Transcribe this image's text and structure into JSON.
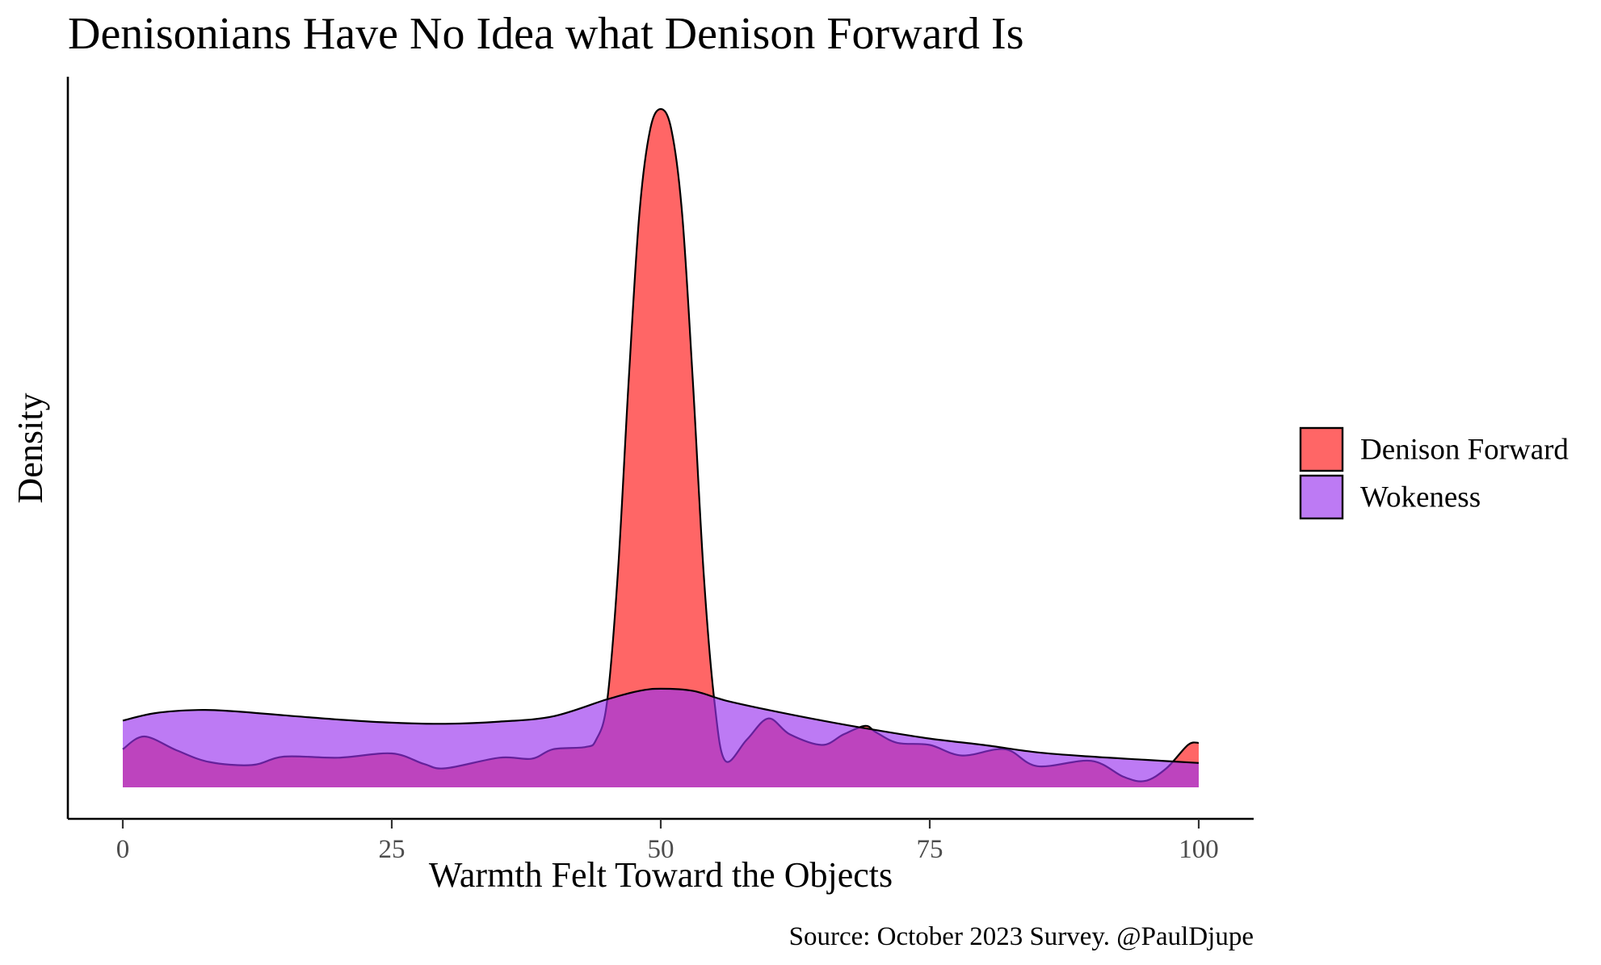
{
  "chart_data": {
    "type": "area",
    "title": "Denisonians Have No Idea what Denison Forward Is",
    "xlabel": "Warmth Felt Toward the Objects",
    "ylabel": "Density",
    "caption": "Source: October 2023 Survey. @PaulDjupe",
    "xlim": [
      -5,
      105
    ],
    "ylim": [
      0,
      0.064
    ],
    "x_ticks": [
      0,
      25,
      50,
      75,
      100
    ],
    "x_tick_labels": [
      "0",
      "25",
      "50",
      "75",
      "100"
    ],
    "y_axis_tick_labels_shown": false,
    "grid": false,
    "legend_position": "right",
    "series": [
      {
        "name": "Denison Forward",
        "color": "#ff3333",
        "opacity": 0.75,
        "points": [
          [
            0,
            0.0036
          ],
          [
            2,
            0.0048
          ],
          [
            5,
            0.0035
          ],
          [
            8,
            0.0024
          ],
          [
            12,
            0.0021
          ],
          [
            15,
            0.0029
          ],
          [
            20,
            0.0028
          ],
          [
            25,
            0.0032
          ],
          [
            28,
            0.0022
          ],
          [
            30,
            0.0018
          ],
          [
            35,
            0.0028
          ],
          [
            38,
            0.0027
          ],
          [
            40,
            0.0036
          ],
          [
            43,
            0.0038
          ],
          [
            44,
            0.0045
          ],
          [
            45,
            0.008
          ],
          [
            46,
            0.02
          ],
          [
            47,
            0.038
          ],
          [
            48,
            0.054
          ],
          [
            49,
            0.062
          ],
          [
            50,
            0.064
          ],
          [
            51,
            0.062
          ],
          [
            52,
            0.054
          ],
          [
            53,
            0.038
          ],
          [
            54,
            0.02
          ],
          [
            55,
            0.008
          ],
          [
            56,
            0.0025
          ],
          [
            58,
            0.0045
          ],
          [
            60,
            0.0065
          ],
          [
            62,
            0.005
          ],
          [
            65,
            0.004
          ],
          [
            67,
            0.005
          ],
          [
            69,
            0.0058
          ],
          [
            70,
            0.0052
          ],
          [
            72,
            0.0042
          ],
          [
            75,
            0.004
          ],
          [
            78,
            0.003
          ],
          [
            82,
            0.0036
          ],
          [
            85,
            0.002
          ],
          [
            90,
            0.0025
          ],
          [
            93,
            0.001
          ],
          [
            95,
            0.0006
          ],
          [
            97,
            0.0018
          ],
          [
            99,
            0.004
          ],
          [
            100,
            0.0042
          ]
        ]
      },
      {
        "name": "Wokeness",
        "color": "#9933ee",
        "opacity": 0.65,
        "points": [
          [
            0,
            0.0063
          ],
          [
            3,
            0.007
          ],
          [
            7,
            0.0073
          ],
          [
            10,
            0.0072
          ],
          [
            15,
            0.0068
          ],
          [
            20,
            0.0064
          ],
          [
            25,
            0.0061
          ],
          [
            30,
            0.006
          ],
          [
            35,
            0.0062
          ],
          [
            40,
            0.0067
          ],
          [
            45,
            0.0083
          ],
          [
            48,
            0.0091
          ],
          [
            50,
            0.0093
          ],
          [
            53,
            0.0091
          ],
          [
            56,
            0.0082
          ],
          [
            60,
            0.0073
          ],
          [
            65,
            0.0063
          ],
          [
            70,
            0.0054
          ],
          [
            75,
            0.0046
          ],
          [
            80,
            0.004
          ],
          [
            85,
            0.0033
          ],
          [
            90,
            0.0029
          ],
          [
            95,
            0.0026
          ],
          [
            100,
            0.0023
          ]
        ]
      }
    ]
  }
}
